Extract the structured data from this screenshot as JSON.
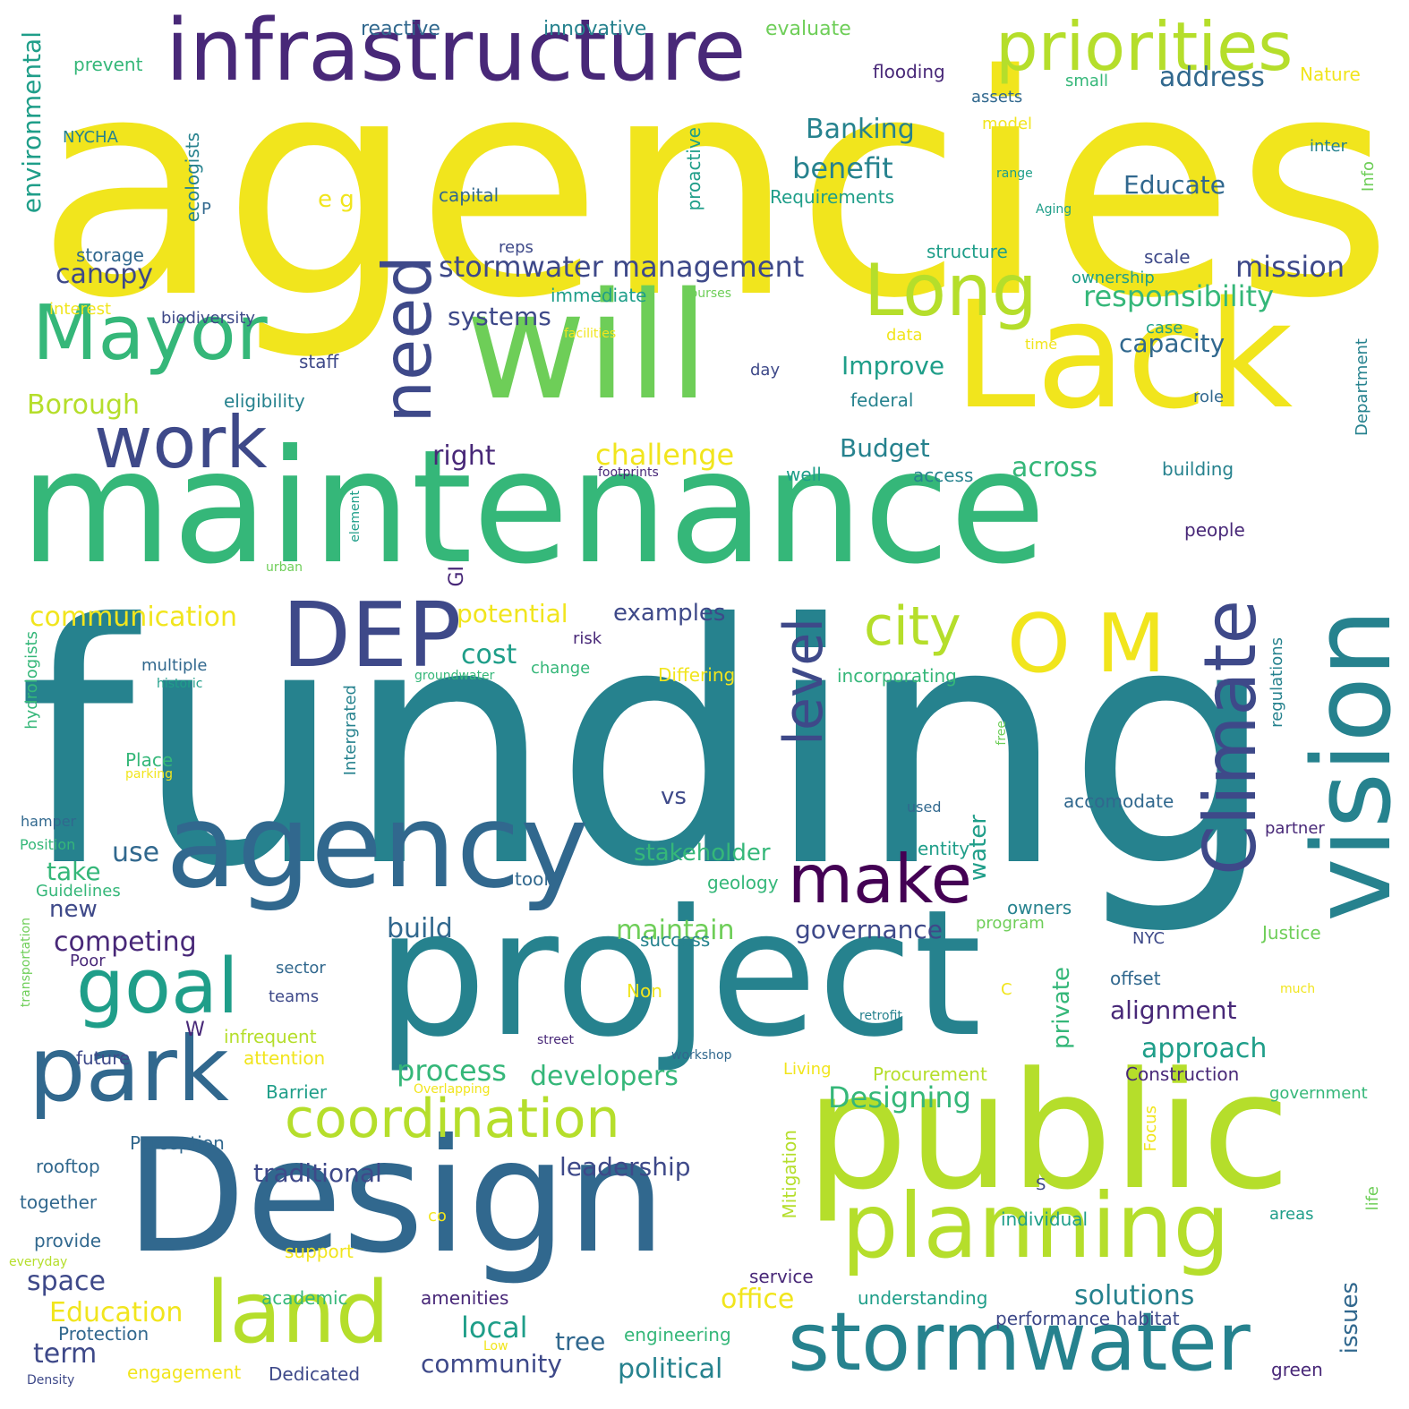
{
  "palette": {
    "yellow": "#f1e51d",
    "lime": "#b5de2b",
    "light_green": "#6ece58",
    "green": "#35b779",
    "teal_green": "#1f9e89",
    "teal": "#26828e",
    "blue": "#31688e",
    "indigo": "#3e4989",
    "purple": "#482878",
    "dark_purple": "#440154"
  },
  "words": [
    {
      "text": "agencies",
      "color": "yellow"
    },
    {
      "text": "funding",
      "color": "teal"
    },
    {
      "text": "maintenance",
      "color": "green"
    },
    {
      "text": "project",
      "color": "teal"
    },
    {
      "text": "Design",
      "color": "blue"
    },
    {
      "text": "public",
      "color": "lime"
    },
    {
      "text": "will",
      "color": "light_green"
    },
    {
      "text": "Lack",
      "color": "yellow"
    },
    {
      "text": "infrastructure",
      "color": "purple"
    },
    {
      "text": "agency",
      "color": "blue"
    },
    {
      "text": "vision",
      "color": "teal"
    },
    {
      "text": "priorities",
      "color": "lime"
    },
    {
      "text": "planning",
      "color": "lime"
    },
    {
      "text": "stormwater",
      "color": "teal"
    },
    {
      "text": "land",
      "color": "lime"
    },
    {
      "text": "park",
      "color": "blue"
    },
    {
      "text": "Mayor",
      "color": "green"
    },
    {
      "text": "DEP",
      "color": "indigo"
    },
    {
      "text": "O M",
      "color": "yellow"
    },
    {
      "text": "Climate",
      "color": "indigo"
    },
    {
      "text": "Long",
      "color": "lime"
    },
    {
      "text": "work",
      "color": "indigo"
    },
    {
      "text": "need",
      "color": "indigo"
    },
    {
      "text": "goal",
      "color": "teal_green"
    },
    {
      "text": "make",
      "color": "dark_purple"
    },
    {
      "text": "coordination",
      "color": "lime"
    },
    {
      "text": "city",
      "color": "lime"
    },
    {
      "text": "level",
      "color": "indigo"
    },
    {
      "text": "stormwater management",
      "color": "indigo"
    },
    {
      "text": "Designing",
      "color": "green"
    },
    {
      "text": "responsibility",
      "color": "green"
    },
    {
      "text": "mission",
      "color": "indigo"
    },
    {
      "text": "benefit",
      "color": "teal"
    },
    {
      "text": "Banking",
      "color": "teal"
    },
    {
      "text": "address",
      "color": "blue"
    },
    {
      "text": "environmental",
      "color": "teal_green"
    },
    {
      "text": "Borough",
      "color": "lime"
    },
    {
      "text": "communication",
      "color": "yellow"
    },
    {
      "text": "challenge",
      "color": "yellow"
    },
    {
      "text": "Budget",
      "color": "teal"
    },
    {
      "text": "across",
      "color": "green"
    },
    {
      "text": "potential",
      "color": "yellow"
    },
    {
      "text": "examples",
      "color": "indigo"
    },
    {
      "text": "cost",
      "color": "teal_green"
    },
    {
      "text": "capacity",
      "color": "blue"
    },
    {
      "text": "Improve",
      "color": "teal_green"
    },
    {
      "text": "systems",
      "color": "indigo"
    },
    {
      "text": "canopy",
      "color": "indigo"
    },
    {
      "text": "Educate",
      "color": "blue"
    },
    {
      "text": "right",
      "color": "purple"
    },
    {
      "text": "process",
      "color": "green"
    },
    {
      "text": "traditional",
      "color": "indigo"
    },
    {
      "text": "leadership",
      "color": "indigo"
    },
    {
      "text": "developers",
      "color": "green"
    },
    {
      "text": "solutions",
      "color": "teal"
    },
    {
      "text": "political",
      "color": "teal"
    },
    {
      "text": "community",
      "color": "indigo"
    },
    {
      "text": "approach",
      "color": "teal_green"
    },
    {
      "text": "alignment",
      "color": "purple"
    },
    {
      "text": "governance",
      "color": "indigo"
    },
    {
      "text": "stakeholder",
      "color": "green"
    },
    {
      "text": "maintain",
      "color": "light_green"
    },
    {
      "text": "competing",
      "color": "purple"
    },
    {
      "text": "build",
      "color": "blue"
    },
    {
      "text": "local",
      "color": "teal_green"
    },
    {
      "text": "office",
      "color": "yellow"
    },
    {
      "text": "Education",
      "color": "yellow"
    },
    {
      "text": "term",
      "color": "indigo"
    },
    {
      "text": "space",
      "color": "indigo"
    },
    {
      "text": "private",
      "color": "green"
    },
    {
      "text": "water",
      "color": "teal_green"
    },
    {
      "text": "issues",
      "color": "blue"
    },
    {
      "text": "GI",
      "color": "purple"
    },
    {
      "text": "use",
      "color": "blue"
    },
    {
      "text": "take",
      "color": "green"
    },
    {
      "text": "new",
      "color": "indigo"
    },
    {
      "text": "vs",
      "color": "indigo"
    },
    {
      "text": "tree",
      "color": "blue"
    },
    {
      "text": "W",
      "color": "purple"
    },
    {
      "text": "e g",
      "color": "yellow"
    },
    {
      "text": "reactive",
      "color": "blue"
    },
    {
      "text": "innovative",
      "color": "teal"
    },
    {
      "text": "evaluate",
      "color": "light_green"
    },
    {
      "text": "prevent",
      "color": "green"
    },
    {
      "text": "flooding",
      "color": "purple"
    },
    {
      "text": "small",
      "color": "green"
    },
    {
      "text": "Nature",
      "color": "yellow"
    },
    {
      "text": "assets",
      "color": "blue"
    },
    {
      "text": "model",
      "color": "yellow"
    },
    {
      "text": "NYCHA",
      "color": "teal"
    },
    {
      "text": "inter",
      "color": "teal"
    },
    {
      "text": "range",
      "color": "teal_green"
    },
    {
      "text": "Aging",
      "color": "teal_green"
    },
    {
      "text": "capital",
      "color": "blue"
    },
    {
      "text": "Requirements",
      "color": "teal_green"
    },
    {
      "text": "P",
      "color": "blue"
    },
    {
      "text": "ecologists",
      "color": "teal"
    },
    {
      "text": "proactive",
      "color": "teal_green"
    },
    {
      "text": "Info",
      "color": "light_green"
    },
    {
      "text": "reps",
      "color": "indigo"
    },
    {
      "text": "structure",
      "color": "teal_green"
    },
    {
      "text": "scale",
      "color": "indigo"
    },
    {
      "text": "storage",
      "color": "blue"
    },
    {
      "text": "ownership",
      "color": "teal_green"
    },
    {
      "text": "immediate",
      "color": "teal_green"
    },
    {
      "text": "courses",
      "color": "light_green"
    },
    {
      "text": "interest",
      "color": "yellow"
    },
    {
      "text": "biodiversity",
      "color": "indigo"
    },
    {
      "text": "case",
      "color": "teal_green"
    },
    {
      "text": "facilities",
      "color": "yellow"
    },
    {
      "text": "data",
      "color": "yellow"
    },
    {
      "text": "time",
      "color": "yellow"
    },
    {
      "text": "staff",
      "color": "indigo"
    },
    {
      "text": "day",
      "color": "indigo"
    },
    {
      "text": "eligibility",
      "color": "teal"
    },
    {
      "text": "federal",
      "color": "teal"
    },
    {
      "text": "role",
      "color": "blue"
    },
    {
      "text": "Department",
      "color": "teal"
    },
    {
      "text": "footprints",
      "color": "purple"
    },
    {
      "text": "well",
      "color": "teal_green"
    },
    {
      "text": "access",
      "color": "teal"
    },
    {
      "text": "building",
      "color": "teal"
    },
    {
      "text": "element",
      "color": "teal_green"
    },
    {
      "text": "urban",
      "color": "light_green"
    },
    {
      "text": "people",
      "color": "purple"
    },
    {
      "text": "risk",
      "color": "purple"
    },
    {
      "text": "Differing",
      "color": "yellow"
    },
    {
      "text": "incorporating",
      "color": "green"
    },
    {
      "text": "multiple",
      "color": "blue"
    },
    {
      "text": "change",
      "color": "green"
    },
    {
      "text": "hydrologists",
      "color": "green"
    },
    {
      "text": "historic",
      "color": "teal_green"
    },
    {
      "text": "groundwater",
      "color": "green"
    },
    {
      "text": "regulations",
      "color": "teal"
    },
    {
      "text": "Intergrated",
      "color": "teal"
    },
    {
      "text": "Place",
      "color": "green"
    },
    {
      "text": "parking",
      "color": "yellow"
    },
    {
      "text": "free",
      "color": "light_green"
    },
    {
      "text": "accomodate",
      "color": "blue"
    },
    {
      "text": "used",
      "color": "blue"
    },
    {
      "text": "hamper",
      "color": "blue"
    },
    {
      "text": "Position",
      "color": "green"
    },
    {
      "text": "partner",
      "color": "purple"
    },
    {
      "text": "entity",
      "color": "teal_green"
    },
    {
      "text": "tool",
      "color": "blue"
    },
    {
      "text": "geology",
      "color": "green"
    },
    {
      "text": "Guidelines",
      "color": "green"
    },
    {
      "text": "success",
      "color": "teal"
    },
    {
      "text": "owners",
      "color": "teal"
    },
    {
      "text": "program",
      "color": "light_green"
    },
    {
      "text": "Justice",
      "color": "light_green"
    },
    {
      "text": "transportation",
      "color": "light_green"
    },
    {
      "text": "NYC",
      "color": "indigo"
    },
    {
      "text": "Poor",
      "color": "purple"
    },
    {
      "text": "sector",
      "color": "blue"
    },
    {
      "text": "offset",
      "color": "blue"
    },
    {
      "text": "teams",
      "color": "indigo"
    },
    {
      "text": "C",
      "color": "yellow"
    },
    {
      "text": "much",
      "color": "yellow"
    },
    {
      "text": "Non",
      "color": "yellow"
    },
    {
      "text": "retrofit",
      "color": "teal"
    },
    {
      "text": "infrequent",
      "color": "lime"
    },
    {
      "text": "street",
      "color": "purple"
    },
    {
      "text": "future",
      "color": "indigo"
    },
    {
      "text": "attention",
      "color": "yellow"
    },
    {
      "text": "workshop",
      "color": "blue"
    },
    {
      "text": "Living",
      "color": "yellow"
    },
    {
      "text": "Construction",
      "color": "purple"
    },
    {
      "text": "Procurement",
      "color": "lime"
    },
    {
      "text": "Barrier",
      "color": "teal_green"
    },
    {
      "text": "Overlapping",
      "color": "yellow"
    },
    {
      "text": "government",
      "color": "green"
    },
    {
      "text": "Focus",
      "color": "yellow"
    },
    {
      "text": "Mitigation",
      "color": "lime"
    },
    {
      "text": "Perception",
      "color": "blue"
    },
    {
      "text": "rooftop",
      "color": "blue"
    },
    {
      "text": "S",
      "color": "indigo"
    },
    {
      "text": "together",
      "color": "blue"
    },
    {
      "text": "co",
      "color": "yellow"
    },
    {
      "text": "individual",
      "color": "teal_green"
    },
    {
      "text": "areas",
      "color": "teal_green"
    },
    {
      "text": "life",
      "color": "light_green"
    },
    {
      "text": "provide",
      "color": "blue"
    },
    {
      "text": "support",
      "color": "yellow"
    },
    {
      "text": "everyday",
      "color": "lime"
    },
    {
      "text": "service",
      "color": "purple"
    },
    {
      "text": "academic",
      "color": "green"
    },
    {
      "text": "amenities",
      "color": "purple"
    },
    {
      "text": "understanding",
      "color": "teal_green"
    },
    {
      "text": "performance habitat",
      "color": "indigo"
    },
    {
      "text": "Protection",
      "color": "blue"
    },
    {
      "text": "engineering",
      "color": "green"
    },
    {
      "text": "Low",
      "color": "yellow"
    },
    {
      "text": "engagement",
      "color": "yellow"
    },
    {
      "text": "Dedicated",
      "color": "indigo"
    },
    {
      "text": "Density",
      "color": "indigo"
    },
    {
      "text": "green",
      "color": "purple"
    }
  ]
}
